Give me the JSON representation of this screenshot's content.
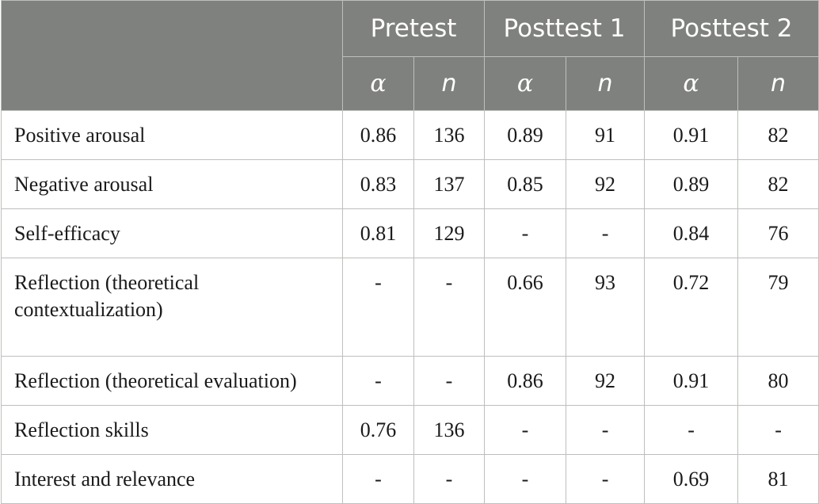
{
  "table": {
    "groups": [
      "Pretest",
      "Posttest 1",
      "Posttest 2"
    ],
    "sub_headers": [
      "α",
      "n",
      "α",
      "n",
      "α",
      "n"
    ],
    "rows": [
      {
        "label": "Positive arousal",
        "values": [
          "0.86",
          "136",
          "0.89",
          "91",
          "0.91",
          "82"
        ]
      },
      {
        "label": "Negative arousal",
        "values": [
          "0.83",
          "137",
          "0.85",
          "92",
          "0.89",
          "82"
        ]
      },
      {
        "label": "Self-efficacy",
        "values": [
          "0.81",
          "129",
          "-",
          "-",
          "0.84",
          "76"
        ]
      },
      {
        "label": "Reflection (theoretical contextualization)",
        "values": [
          "-",
          "-",
          "0.66",
          "93",
          "0.72",
          "79"
        ]
      },
      {
        "label": "Reflection (theoretical evaluation)",
        "values": [
          "-",
          "-",
          "0.86",
          "92",
          "0.91",
          "80"
        ]
      },
      {
        "label": "Reflection skills",
        "values": [
          "0.76",
          "136",
          "-",
          "-",
          "-",
          "-"
        ]
      },
      {
        "label": "Interest and relevance",
        "values": [
          "-",
          "-",
          "-",
          "-",
          "0.69",
          "81"
        ]
      }
    ]
  }
}
